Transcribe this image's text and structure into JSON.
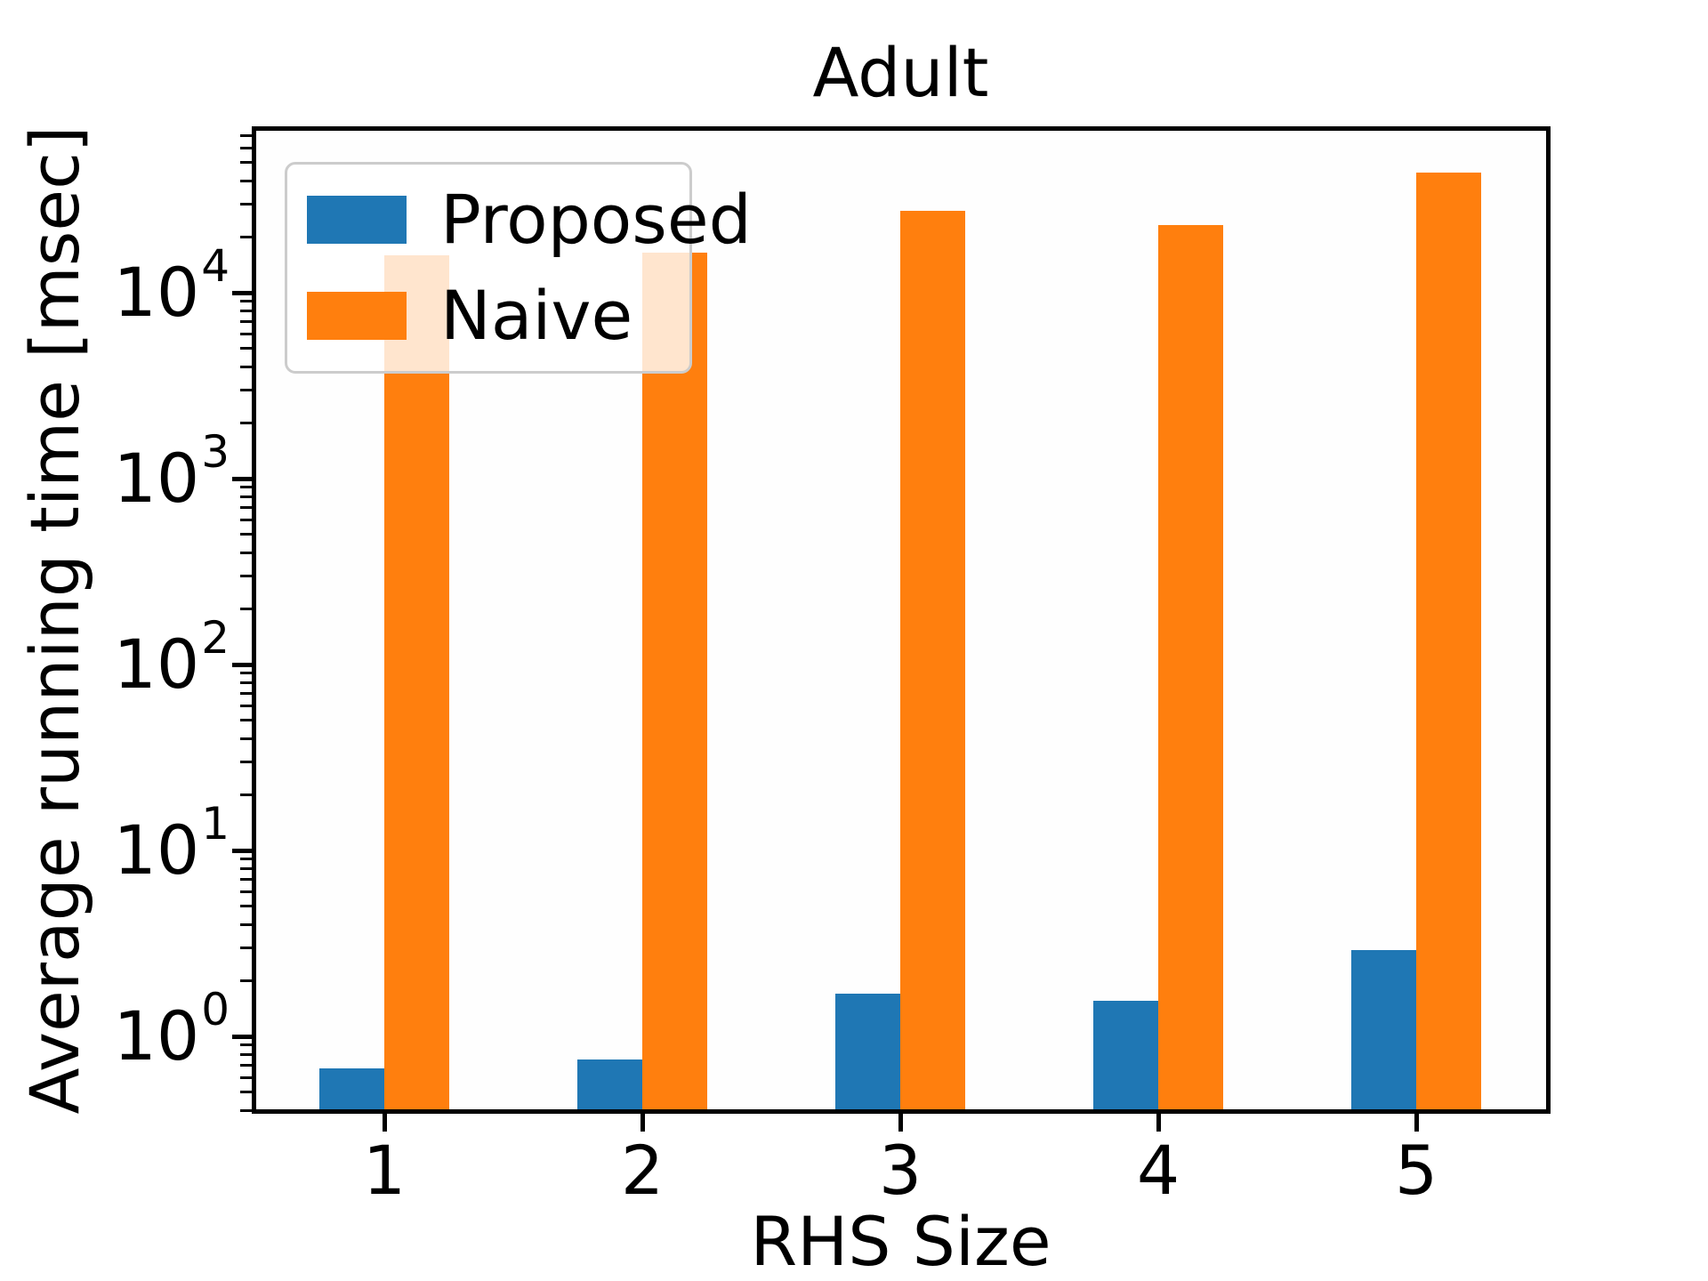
{
  "chart_data": {
    "type": "bar",
    "title": "Adult",
    "xlabel": "RHS Size",
    "ylabel": "Average running time [msec]",
    "categories": [
      "1",
      "2",
      "3",
      "4",
      "5"
    ],
    "series": [
      {
        "name": "Proposed",
        "color": "#1f77b4",
        "values": [
          0.67,
          0.75,
          1.7,
          1.55,
          2.9
        ]
      },
      {
        "name": "Naive",
        "color": "#ff7f0e",
        "values": [
          15800,
          16400,
          27600,
          23100,
          44300
        ]
      }
    ],
    "yscale": "log",
    "ylim": [
      0.39,
      77000
    ],
    "y_major_ticks": [
      1,
      10,
      100,
      1000,
      10000
    ],
    "y_major_tick_labels": [
      "10^0",
      "10^1",
      "10^2",
      "10^3",
      "10^4"
    ],
    "y_major_tick_exponents": [
      0,
      1,
      2,
      3,
      4
    ],
    "grid": false,
    "legend_position": "upper left",
    "legend_frame_color": "#cccccc",
    "axis_color": "#000000"
  }
}
